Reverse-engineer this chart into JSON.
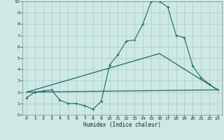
{
  "xlabel": "Humidex (Indice chaleur)",
  "background_color": "#cde8e5",
  "grid_color": "#afd0cc",
  "line_color": "#1c6b5f",
  "xlim": [
    -0.5,
    23.5
  ],
  "ylim": [
    0,
    10
  ],
  "xticks": [
    0,
    1,
    2,
    3,
    4,
    5,
    6,
    7,
    8,
    9,
    10,
    11,
    12,
    13,
    14,
    15,
    16,
    17,
    18,
    19,
    20,
    21,
    22,
    23
  ],
  "yticks": [
    0,
    1,
    2,
    3,
    4,
    5,
    6,
    7,
    8,
    9,
    10
  ],
  "line1_x": [
    0,
    1,
    2,
    3,
    4,
    5,
    6,
    7,
    8,
    9,
    10,
    11,
    12,
    13,
    14,
    15,
    16,
    17,
    18,
    19,
    20,
    21,
    22,
    23
  ],
  "line1_y": [
    1.5,
    2.0,
    2.1,
    2.2,
    1.3,
    1.0,
    1.0,
    0.8,
    0.5,
    1.2,
    4.4,
    5.3,
    6.5,
    6.6,
    8.0,
    10.0,
    10.0,
    9.5,
    7.0,
    6.8,
    4.3,
    3.3,
    2.7,
    2.2
  ],
  "line2_x": [
    0,
    23
  ],
  "line2_y": [
    2.0,
    2.2
  ],
  "line3_x": [
    0,
    16,
    23
  ],
  "line3_y": [
    2.0,
    5.4,
    2.2
  ]
}
